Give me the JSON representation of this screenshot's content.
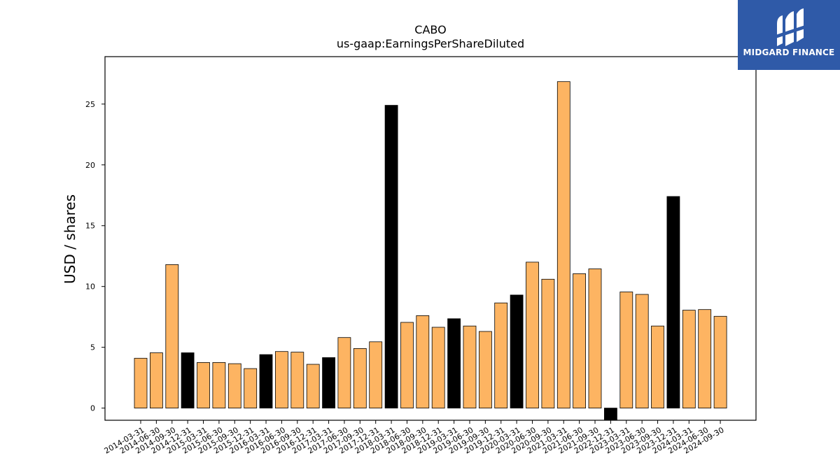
{
  "brand": {
    "name": "MIDGARD FINANCE",
    "bg_color": "#2f5aa8",
    "text_color": "#ffffff"
  },
  "chart_data": {
    "type": "bar",
    "title": "CABO",
    "subtitle": "us-gaap:EarningsPerShareDiluted",
    "xlabel": "",
    "ylabel": "USD / shares",
    "ylim": [
      -1,
      28.9
    ],
    "yticks": [
      0,
      5,
      10,
      15,
      20,
      25
    ],
    "grid": false,
    "legend": "none",
    "colors": {
      "quarter": "#fdb462",
      "year_end": "#000000",
      "edge": "#000000"
    },
    "categories": [
      "2014-03-31",
      "2014-06-30",
      "2014-09-30",
      "2014-12-31",
      "2015-03-31",
      "2015-06-30",
      "2015-09-30",
      "2015-12-31",
      "2016-03-31",
      "2016-06-30",
      "2016-09-30",
      "2016-12-31",
      "2017-03-31",
      "2017-06-30",
      "2017-09-30",
      "2017-12-31",
      "2018-03-31",
      "2018-06-30",
      "2018-09-30",
      "2018-12-31",
      "2019-03-31",
      "2019-06-30",
      "2019-09-30",
      "2019-12-31",
      "2020-03-31",
      "2020-06-30",
      "2020-09-30",
      "2021-03-31",
      "2021-06-30",
      "2021-09-30",
      "2022-12-31",
      "2023-03-31",
      "2023-06-30",
      "2023-09-30",
      "2023-12-31",
      "2024-03-31",
      "2024-06-30",
      "2024-09-30"
    ],
    "values": [
      4.1,
      4.55,
      11.8,
      4.55,
      3.75,
      3.75,
      3.65,
      3.25,
      4.4,
      4.65,
      4.6,
      3.6,
      4.15,
      5.8,
      4.9,
      5.45,
      24.9,
      7.05,
      7.6,
      6.65,
      7.35,
      6.75,
      6.3,
      8.65,
      9.3,
      12.0,
      10.6,
      26.85,
      11.05,
      11.45,
      -1.0,
      9.55,
      9.35,
      6.75,
      17.4,
      8.05,
      8.1,
      7.55
    ],
    "year_end": [
      false,
      false,
      false,
      true,
      false,
      false,
      false,
      false,
      true,
      false,
      false,
      false,
      true,
      false,
      false,
      false,
      true,
      false,
      false,
      false,
      true,
      false,
      false,
      false,
      true,
      false,
      false,
      false,
      false,
      false,
      true,
      false,
      false,
      false,
      true,
      false,
      false,
      false
    ]
  }
}
